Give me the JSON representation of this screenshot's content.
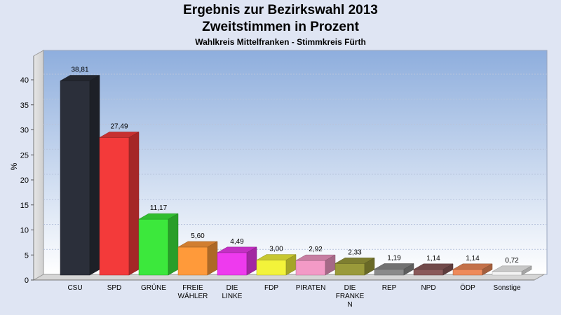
{
  "header": {
    "title": "Ergebnis zur Bezirkswahl 2013",
    "subtitle": "Zweitstimmen in Prozent",
    "caption": "Wahlkreis Mittelfranken - Stimmkreis Fürth"
  },
  "chart_data": {
    "type": "bar",
    "title": "Ergebnis zur Bezirkswahl 2013",
    "subtitle": "Zweitstimmen in Prozent",
    "xlabel": "",
    "ylabel": "%",
    "ylim": [
      0,
      45
    ],
    "yticks": [
      0,
      5,
      10,
      15,
      20,
      25,
      30,
      35,
      40
    ],
    "grid": true,
    "categories": [
      [
        "CSU"
      ],
      [
        "SPD"
      ],
      [
        "GRÜNE"
      ],
      [
        "FREIE",
        "WÄHLER"
      ],
      [
        "DIE",
        "LINKE"
      ],
      [
        "FDP"
      ],
      [
        "PIRATEN"
      ],
      [
        "DIE",
        "FRANKE",
        "N"
      ],
      [
        "REP"
      ],
      [
        "NPD"
      ],
      [
        "ÖDP"
      ],
      [
        "Sonstige"
      ]
    ],
    "values": [
      38.81,
      27.49,
      11.17,
      5.6,
      4.49,
      3.0,
      2.92,
      2.33,
      1.19,
      1.14,
      1.14,
      0.72
    ],
    "value_labels": [
      "38,81",
      "27,49",
      "11,17",
      "5,60",
      "4,49",
      "3,00",
      "2,92",
      "2,33",
      "1,19",
      "1,14",
      "1,14",
      "0,72"
    ],
    "colors": [
      "#2b2f3a",
      "#f33a3a",
      "#3ce83c",
      "#ff9a3a",
      "#ee3aee",
      "#f3f33a",
      "#f39ac6",
      "#9a9a3a",
      "#8a8a8a",
      "#8a5a5a",
      "#ee8a5a",
      "#f3f3f3"
    ]
  }
}
